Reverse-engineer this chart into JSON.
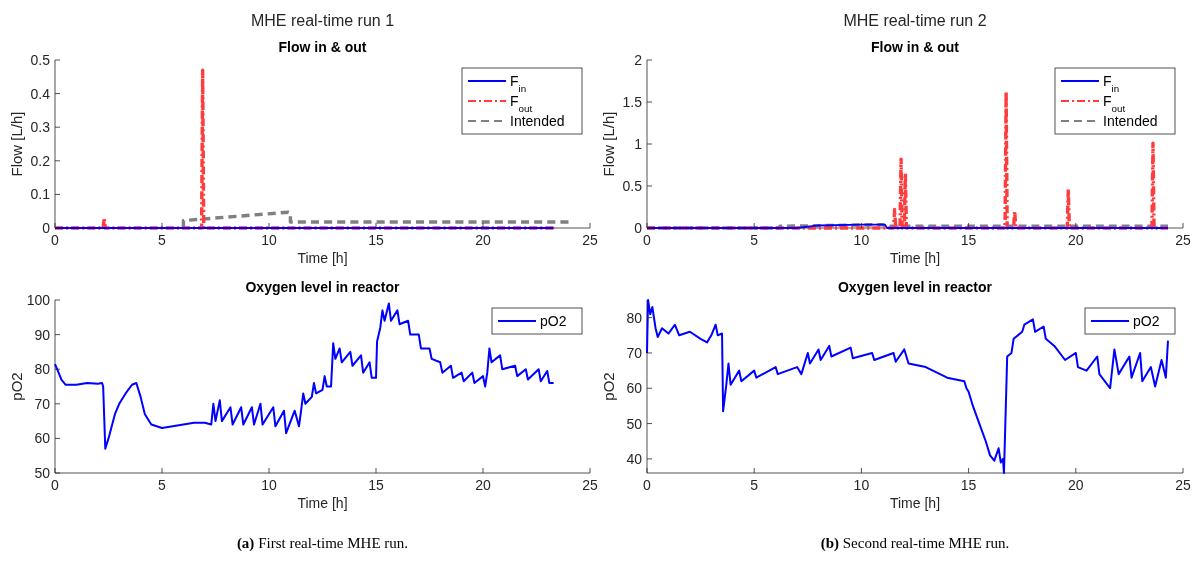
{
  "chart_data": [
    {
      "type": "line",
      "title": "Flow in & out",
      "xlabel": "Time [h]",
      "ylabel": "Flow [L/h]",
      "annotations": [
        "MHE real-time run 1"
      ],
      "xlim": [
        0,
        25
      ],
      "xticks": [
        0,
        5,
        10,
        15,
        20,
        25
      ],
      "ylim": [
        0,
        0.5
      ],
      "yticks": [
        0,
        0.1,
        0.2,
        0.3,
        0.4,
        0.5
      ],
      "grid": false,
      "legend": "top right",
      "marker": "none",
      "series": [
        {
          "name": "F$_{in}$",
          "color": "#0000ff",
          "line_style": "solid",
          "x": [
            0,
            23.3
          ],
          "values": [
            0,
            0
          ]
        },
        {
          "name": "F$_{out}$",
          "color": "#ff3c3c",
          "line_style": "dashdot",
          "x": [
            0,
            2.25,
            2.3,
            2.35,
            6.85,
            6.9,
            6.95,
            23.3
          ],
          "values": [
            0,
            0,
            0.03,
            0,
            0,
            0.47,
            0,
            0
          ]
        },
        {
          "name": "Intended",
          "color": "#808080",
          "line_style": "dashed",
          "x": [
            6,
            6,
            10.9,
            11,
            11,
            24
          ],
          "values": [
            0,
            0.022,
            0.047,
            0.045,
            0.018,
            0.018
          ]
        }
      ]
    },
    {
      "type": "line",
      "title": "Flow in & out",
      "xlabel": "Time [h]",
      "ylabel": "Flow [L/h]",
      "annotations": [
        "MHE real-time run 2"
      ],
      "xlim": [
        0,
        25
      ],
      "xticks": [
        0,
        5,
        10,
        15,
        20,
        25
      ],
      "ylim": [
        0,
        2
      ],
      "yticks": [
        0,
        0.5,
        1,
        1.5,
        2
      ],
      "grid": false,
      "legend": "top right",
      "marker": "none",
      "series": [
        {
          "name": "F$_{in}$",
          "color": "#0000ff",
          "line_style": "solid",
          "x": [
            0,
            7,
            8,
            10,
            11,
            11.1,
            11.2,
            24.3
          ],
          "values": [
            0,
            0,
            0.03,
            0.04,
            0.04,
            0.04,
            0,
            0
          ]
        },
        {
          "name": "F$_{out}$",
          "color": "#ff3c3c",
          "line_style": "dashdot",
          "x": [
            0,
            11.5,
            11.55,
            11.6,
            11.8,
            11.85,
            11.9,
            12,
            12.05,
            12.1,
            16.7,
            16.75,
            16.8,
            17.1,
            17.15,
            17.2,
            19.6,
            19.65,
            19.7,
            23.55,
            23.6,
            23.65,
            24.3
          ],
          "values": [
            0,
            0,
            0.22,
            0,
            0,
            0.82,
            0,
            0,
            0.65,
            0,
            0,
            1.62,
            0,
            0,
            0.2,
            0,
            0,
            0.46,
            0,
            0,
            1.01,
            0,
            0
          ]
        },
        {
          "name": "Intended",
          "color": "#808080",
          "line_style": "dashed",
          "x": [
            0,
            6.2,
            6.2,
            11,
            11.1,
            24.3
          ],
          "values": [
            0,
            0,
            0.02,
            0.04,
            0.02,
            0.02
          ]
        }
      ]
    },
    {
      "type": "line",
      "title": "Oxygen level in reactor",
      "xlabel": "Time [h]",
      "ylabel": "pO2",
      "annotations": [
        "(a) First real-time MHE run."
      ],
      "xlim": [
        0,
        25
      ],
      "xticks": [
        0,
        5,
        10,
        15,
        20,
        25
      ],
      "ylim": [
        50,
        100
      ],
      "yticks": [
        50,
        60,
        70,
        80,
        90,
        100
      ],
      "grid": false,
      "legend": "top right",
      "marker": "none",
      "series": [
        {
          "name": "pO2",
          "color": "#0000ff",
          "line_style": "solid",
          "x": [
            0,
            0.1,
            0.3,
            0.5,
            1,
            1.5,
            2,
            2.2,
            2.25,
            2.35,
            2.5,
            2.8,
            3,
            3.3,
            3.6,
            3.8,
            4,
            4.2,
            4.5,
            5,
            5.5,
            6,
            6.5,
            7,
            7.3,
            7.4,
            7.5,
            7.7,
            7.8,
            8.2,
            8.3,
            8.7,
            8.8,
            9.2,
            9.3,
            9.6,
            9.7,
            10.2,
            10.3,
            10.7,
            10.8,
            11.2,
            11.4,
            11.5,
            11.6,
            11.7,
            12,
            12.1,
            12.2,
            12.5,
            12.6,
            12.7,
            12.9,
            13,
            13.1,
            13.3,
            13.4,
            13.8,
            13.9,
            14.3,
            14.4,
            14.7,
            14.8,
            15,
            15.05,
            15.2,
            15.3,
            15.4,
            15.6,
            15.7,
            16,
            16.1,
            16.5,
            16.6,
            17,
            17.1,
            17.5,
            17.6,
            18,
            18.1,
            18.5,
            18.6,
            19,
            19.1,
            19.5,
            19.6,
            20,
            20.1,
            20.2,
            20.3,
            20.4,
            20.8,
            20.9,
            21.5,
            21.6,
            22,
            22.1,
            22.6,
            22.7,
            23,
            23.1,
            23.3
          ],
          "values": [
            81.5,
            80,
            77,
            75.5,
            75.5,
            76,
            75.8,
            76,
            75,
            57,
            60,
            67,
            70,
            73,
            75.5,
            76,
            72,
            67,
            64,
            63,
            63.5,
            64,
            64.5,
            64.5,
            64,
            70,
            65,
            71,
            65,
            69,
            64,
            69,
            64,
            69,
            64,
            70,
            64,
            69,
            63.5,
            68,
            61.5,
            68,
            63.5,
            68,
            73,
            70,
            72,
            76,
            73,
            74,
            78,
            75,
            75,
            87.5,
            83,
            86,
            82,
            85,
            81,
            84,
            79,
            82,
            77.5,
            77.5,
            88,
            92,
            97,
            94,
            99,
            94,
            97,
            93,
            94,
            90,
            90,
            86,
            86,
            83,
            82,
            79,
            81,
            77.5,
            79,
            76.5,
            79,
            76,
            78,
            75,
            79,
            86,
            82,
            84,
            80,
            81,
            78,
            80,
            77,
            80,
            76.5,
            79.5,
            76,
            76
          ]
        }
      ]
    },
    {
      "type": "line",
      "title": "Oxygen level in reactor",
      "xlabel": "Time [h]",
      "ylabel": "pO2",
      "annotations": [
        "(b) Second real-time MHE run."
      ],
      "xlim": [
        0,
        25
      ],
      "xticks": [
        0,
        5,
        10,
        15,
        20,
        25
      ],
      "ylim": [
        36,
        85
      ],
      "yticks": [
        40,
        50,
        60,
        70,
        80
      ],
      "grid": false,
      "legend": "top right",
      "marker": "none",
      "series": [
        {
          "name": "pO2",
          "color": "#0000ff",
          "line_style": "solid",
          "x": [
            0,
            0.05,
            0.15,
            0.25,
            0.4,
            0.5,
            0.7,
            1,
            1.3,
            1.5,
            2,
            2.5,
            2.8,
            3,
            3.2,
            3.3,
            3.5,
            3.55,
            3.7,
            3.8,
            3.9,
            4.3,
            4.4,
            5,
            5.1,
            6,
            6.1,
            7,
            7.2,
            7.5,
            7.6,
            8,
            8.1,
            8.5,
            8.6,
            9.5,
            9.6,
            10.5,
            10.6,
            11.5,
            11.6,
            12,
            12.2,
            13,
            14,
            14.8,
            14.9,
            15,
            15.2,
            15.5,
            15.8,
            16,
            16.2,
            16.4,
            16.5,
            16.6,
            16.65,
            16.8,
            17,
            17.1,
            17.5,
            17.6,
            18,
            18.1,
            18.5,
            18.6,
            19,
            19.5,
            20,
            20.1,
            20.5,
            21,
            21.1,
            21.6,
            21.8,
            22,
            22.5,
            22.6,
            23,
            23.1,
            23.5,
            23.7,
            24,
            24.2,
            24.3
          ],
          "values": [
            70,
            85,
            81,
            83,
            77,
            74.5,
            77,
            75.5,
            78,
            75,
            76,
            74,
            73,
            75,
            78,
            75,
            75.5,
            53.5,
            61,
            67,
            61,
            65,
            62,
            65,
            63,
            66,
            64,
            66,
            64,
            70,
            67,
            71,
            68,
            72,
            69,
            71.5,
            68.5,
            70,
            68,
            70,
            67.5,
            71,
            67,
            66,
            63,
            62,
            60,
            59,
            55,
            50,
            45,
            41,
            39.5,
            43,
            39,
            40,
            36,
            69,
            70,
            74,
            76,
            78,
            79.5,
            76,
            77.5,
            74,
            72,
            68,
            70,
            66,
            65,
            69,
            64,
            60,
            71,
            64,
            69,
            63,
            70,
            62,
            66,
            60.5,
            68,
            63,
            73.5
          ]
        }
      ]
    }
  ]
}
